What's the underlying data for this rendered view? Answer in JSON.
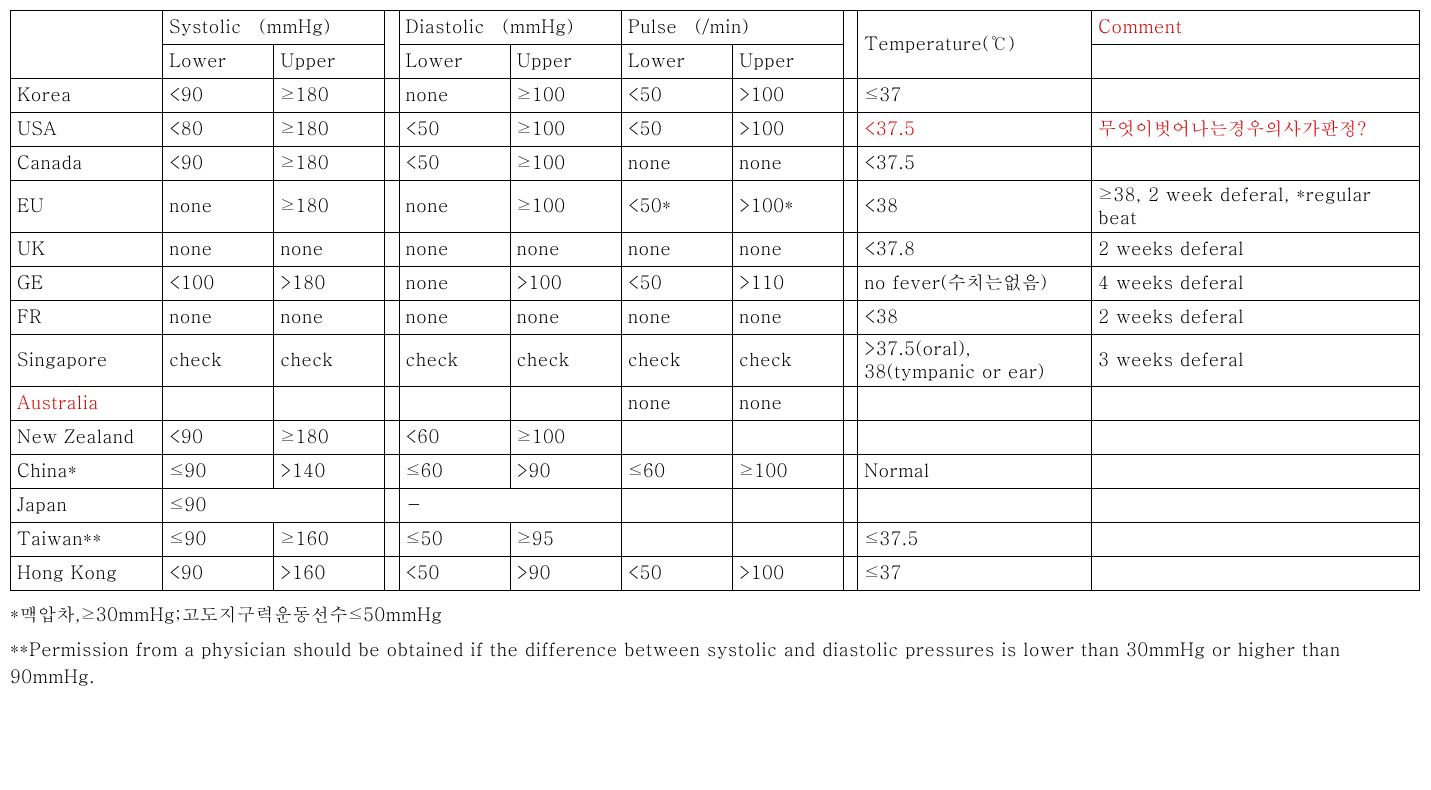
{
  "style": {
    "text_color": "#000000",
    "highlight_color": "#d90000",
    "border_color": "#000000",
    "background_color": "#ffffff",
    "font_family": "Batang, Courier New, monospace",
    "font_size_pt": 13
  },
  "header": {
    "systolic": "Systolic （mmHg）",
    "diastolic": "Diastolic （mmHg）",
    "pulse": "Pulse （/min）",
    "temperature": "Temperature(℃）",
    "comment": "Comment",
    "lower": "Lower",
    "upper": "Upper"
  },
  "rows": [
    {
      "country": "Korea",
      "sys_l": "<90",
      "sys_u": "≥180",
      "dia_l": "none",
      "dia_u": "≥100",
      "pul_l": "<50",
      "pul_u": ">100",
      "temp": "≤37",
      "comment": ""
    },
    {
      "country": "USA",
      "sys_l": "<80",
      "sys_u": "≥180",
      "dia_l": "<50",
      "dia_u": "≥100",
      "pul_l": "<50",
      "pul_u": ">100",
      "temp": "<37.5",
      "temp_red": true,
      "comment": "무엇이벗어나는경우의사가판정?",
      "comment_red": true
    },
    {
      "country": "Canada",
      "sys_l": "<90",
      "sys_u": "≥180",
      "dia_l": "<50",
      "dia_u": "≥100",
      "pul_l": "none",
      "pul_u": "none",
      "temp": "<37.5",
      "comment": ""
    },
    {
      "country": "EU",
      "sys_l": "none",
      "sys_u": "≥180",
      "dia_l": "none",
      "dia_u": "≥100",
      "pul_l": "<50*",
      "pul_u": ">100*",
      "temp": "<38",
      "comment": "≥38, 2 week deferal, *regular beat"
    },
    {
      "country": "UK",
      "sys_l": "none",
      "sys_u": "none",
      "dia_l": "none",
      "dia_u": "none",
      "pul_l": "none",
      "pul_u": "none",
      "temp": "<37.8",
      "comment": "2 weeks deferal"
    },
    {
      "country": "GE",
      "sys_l": "<100",
      "sys_u": ">180",
      "dia_l": "none",
      "dia_u": ">100",
      "pul_l": "<50",
      "pul_u": ">110",
      "temp": "no fever(수치는없음)",
      "comment": "4 weeks deferal"
    },
    {
      "country": "FR",
      "sys_l": "none",
      "sys_u": "none",
      "dia_l": "none",
      "dia_u": "none",
      "pul_l": "none",
      "pul_u": "none",
      "temp": "<38",
      "comment": "2 weeks deferal"
    },
    {
      "country": "Singapore",
      "sys_l": " check",
      "sys_u": "check",
      "dia_l": " check",
      "dia_u": "check",
      "pul_l": " check",
      "pul_u": " check",
      "temp": ">37.5(oral),  38(tympanic or ear)",
      "comment": " 3 weeks deferal"
    },
    {
      "country": "Australia",
      "country_red": true,
      "sys_l": "",
      "sys_u": "",
      "dia_l": "",
      "dia_u": "",
      "pul_l": " none",
      "pul_u": " none",
      "temp": "",
      "comment": ""
    },
    {
      "country": "New Zealand",
      "sys_l": "<90",
      "sys_u": "≥180",
      "dia_l": "<60",
      "dia_u": "≥100",
      "pul_l": "",
      "pul_u": "",
      "temp": "",
      "comment": ""
    },
    {
      "country": "China*",
      "sys_l": "≤90",
      "sys_u": ">140",
      "dia_l": "≤60",
      "dia_u": ">90",
      "pul_l": "≤60",
      "pul_u": "≥100",
      "temp": "Normal",
      "comment": ""
    },
    {
      "country": "Japan",
      "sys_merged": "≤90",
      "dia_merged": "－",
      "pul_l": "",
      "pul_u": "",
      "temp": "",
      "comment": ""
    },
    {
      "country": "Taiwan**",
      "sys_l": "≤90",
      "sys_u": "≥160",
      "dia_l": "≤50",
      "dia_u": "≥95",
      "pul_l": "",
      "pul_u": "",
      "temp": "≤37.5",
      "comment": ""
    },
    {
      "country": "Hong Kong",
      "sys_l": "<90",
      "sys_u": ">160",
      "dia_l": "<50",
      "dia_u": ">90",
      "pul_l": "<50",
      "pul_u": ">100",
      "temp": "≤37",
      "comment": ""
    }
  ],
  "footnotes": {
    "n1": "*맥압차,≥30mmHg;고도지구력운동선수≤50mmHg",
    "n2": "**Permission from a physician should be obtained if the  difference between systolic and diastolic pressures is lower than 30mmHg or  higher than 90mmHg."
  }
}
